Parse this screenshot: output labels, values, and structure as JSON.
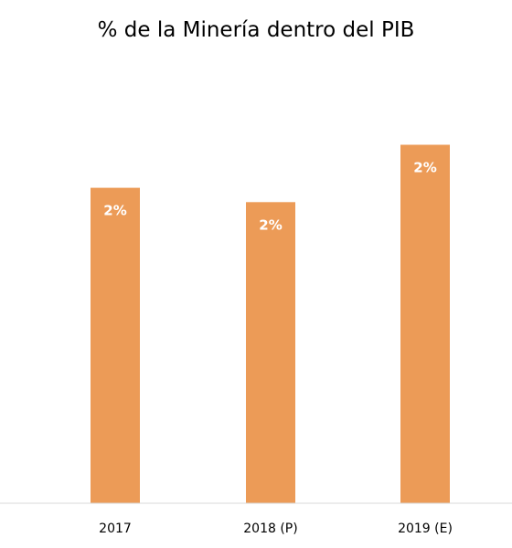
{
  "chart_data": {
    "type": "bar",
    "title": "% de la Minería dentro del PIB",
    "categories": [
      "2017",
      "2018 (P)",
      "2019 (E)"
    ],
    "values": [
      2.2,
      2.1,
      2.5
    ],
    "data_labels": [
      "2%",
      "2%",
      "2%"
    ],
    "ylim": [
      0,
      3
    ],
    "grid": false,
    "legend": "none",
    "bar_color": "#EC9B57",
    "label_color": "#FFFFFF",
    "axis_color": "#D9D9D9"
  }
}
